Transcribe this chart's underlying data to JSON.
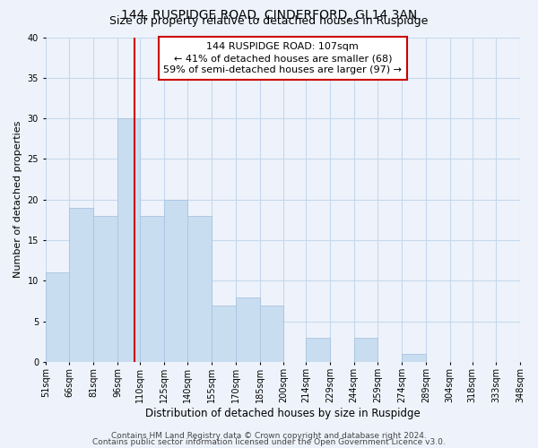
{
  "title": "144, RUSPIDGE ROAD, CINDERFORD, GL14 3AN",
  "subtitle": "Size of property relative to detached houses in Ruspidge",
  "xlabel": "Distribution of detached houses by size in Ruspidge",
  "ylabel": "Number of detached properties",
  "bar_left_edges": [
    51,
    66,
    81,
    96,
    110,
    125,
    140,
    155,
    170,
    185,
    200,
    214,
    229,
    244,
    259,
    274,
    289,
    304,
    318,
    333
  ],
  "bar_heights": [
    11,
    19,
    18,
    30,
    18,
    20,
    18,
    7,
    8,
    7,
    0,
    3,
    0,
    3,
    0,
    1,
    0,
    0,
    0,
    0
  ],
  "bar_widths": [
    15,
    15,
    15,
    14,
    15,
    15,
    15,
    15,
    15,
    15,
    14,
    15,
    15,
    15,
    15,
    15,
    15,
    14,
    15,
    15
  ],
  "x_tick_labels": [
    "51sqm",
    "66sqm",
    "81sqm",
    "96sqm",
    "110sqm",
    "125sqm",
    "140sqm",
    "155sqm",
    "170sqm",
    "185sqm",
    "200sqm",
    "214sqm",
    "229sqm",
    "244sqm",
    "259sqm",
    "274sqm",
    "289sqm",
    "304sqm",
    "318sqm",
    "333sqm",
    "348sqm"
  ],
  "x_tick_positions": [
    51,
    66,
    81,
    96,
    110,
    125,
    140,
    155,
    170,
    185,
    200,
    214,
    229,
    244,
    259,
    274,
    289,
    304,
    318,
    333,
    348
  ],
  "ylim": [
    0,
    40
  ],
  "yticks": [
    0,
    5,
    10,
    15,
    20,
    25,
    30,
    35,
    40
  ],
  "bar_color": "#c9ddf0",
  "bar_edge_color": "#a8c4e0",
  "grid_color": "#c5d8ee",
  "background_color": "#eef3fb",
  "vline_x": 107,
  "vline_color": "#cc0000",
  "annotation_line1": "144 RUSPIDGE ROAD: 107sqm",
  "annotation_line2": "← 41% of detached houses are smaller (68)",
  "annotation_line3": "59% of semi-detached houses are larger (97) →",
  "annotation_box_color": "white",
  "annotation_box_edge": "#cc0000",
  "footer_line1": "Contains HM Land Registry data © Crown copyright and database right 2024.",
  "footer_line2": "Contains public sector information licensed under the Open Government Licence v3.0.",
  "title_fontsize": 10,
  "subtitle_fontsize": 9,
  "xlabel_fontsize": 8.5,
  "ylabel_fontsize": 8,
  "tick_fontsize": 7,
  "annotation_fontsize": 8,
  "footer_fontsize": 6.5
}
